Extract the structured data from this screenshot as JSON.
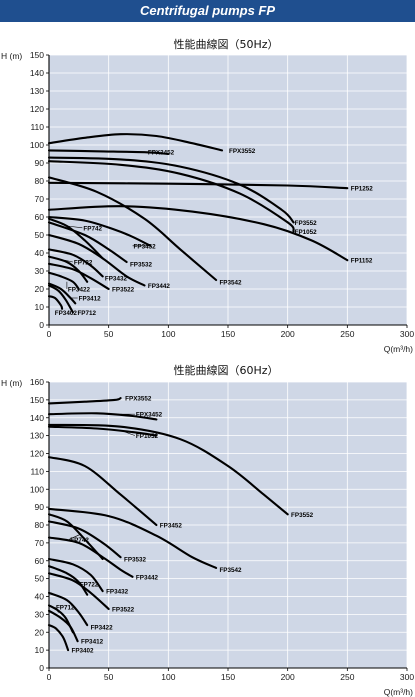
{
  "header": {
    "title": "Centrifugal pumps FP",
    "background": "#1f4f8f",
    "text_color": "#ffffff"
  },
  "colors": {
    "plot_background": "#cfd7e6",
    "grid": "#ffffff",
    "curve": "#000000",
    "axis": "#000000"
  },
  "chart_data": [
    {
      "type": "line",
      "title": "性能曲線図（50Hz）",
      "ylabel": "H (m)",
      "xlabel": "Q(m³/h)",
      "xlim": [
        0,
        300
      ],
      "ylim": [
        0,
        150
      ],
      "xticks": [
        0,
        50,
        100,
        150,
        200,
        250,
        300
      ],
      "yticks": [
        0,
        10,
        20,
        30,
        40,
        50,
        60,
        70,
        80,
        90,
        100,
        110,
        120,
        130,
        140,
        150
      ],
      "grid": true,
      "series": [
        {
          "name": "FPX3552",
          "points": [
            [
              0,
              101
            ],
            [
              30,
              104
            ],
            [
              60,
              106
            ],
            [
              90,
              105
            ],
            [
              120,
              101
            ],
            [
              145,
              97
            ]
          ],
          "label_at": [
            150,
            97
          ]
        },
        {
          "name": "FPX3452",
          "points": [
            [
              0,
              97
            ],
            [
              40,
              96.5
            ],
            [
              80,
              96
            ],
            [
              100,
              95
            ]
          ],
          "label_at": [
            82,
            96
          ],
          "leader": [
            100,
            95
          ]
        },
        {
          "name": "FP1252",
          "points": [
            [
              0,
              79
            ],
            [
              100,
              78.5
            ],
            [
              200,
              77.5
            ],
            [
              250,
              76
            ]
          ],
          "label_at": [
            252,
            76
          ]
        },
        {
          "name": "FP3552",
          "points": [
            [
              0,
              93
            ],
            [
              60,
              92
            ],
            [
              110,
              88
            ],
            [
              160,
              78
            ],
            [
              195,
              64
            ],
            [
              205,
              57
            ]
          ],
          "label_at": [
            205,
            57
          ]
        },
        {
          "name": "FP1052",
          "points": [
            [
              0,
              91
            ],
            [
              60,
              89
            ],
            [
              110,
              84
            ],
            [
              160,
              73
            ],
            [
              200,
              57
            ],
            [
              205,
              52
            ]
          ],
          "label_at": [
            205,
            52
          ]
        },
        {
          "name": "FP1152",
          "points": [
            [
              0,
              64
            ],
            [
              60,
              66
            ],
            [
              120,
              63
            ],
            [
              180,
              56
            ],
            [
              220,
              47
            ],
            [
              250,
              36
            ]
          ],
          "label_at": [
            252,
            36
          ]
        },
        {
          "name": "FP3542",
          "points": [
            [
              0,
              82
            ],
            [
              40,
              74
            ],
            [
              80,
              59
            ],
            [
              110,
              42
            ],
            [
              140,
              25
            ]
          ],
          "label_at": [
            142,
            24
          ]
        },
        {
          "name": "FP3452",
          "points": [
            [
              0,
              60
            ],
            [
              30,
              58
            ],
            [
              55,
              53
            ],
            [
              70,
              49
            ],
            [
              85,
              44
            ]
          ],
          "label_at": [
            70,
            44
          ],
          "leader": [
            85,
            44
          ]
        },
        {
          "name": "FP3532",
          "points": [
            [
              0,
              57
            ],
            [
              30,
              50
            ],
            [
              50,
              42
            ],
            [
              65,
              35
            ]
          ],
          "label_at": [
            67,
            34
          ]
        },
        {
          "name": "FP3442",
          "points": [
            [
              0,
              50
            ],
            [
              25,
              45
            ],
            [
              45,
              37
            ],
            [
              65,
              27
            ],
            [
              80,
              22
            ]
          ],
          "label_at": [
            82,
            22
          ]
        },
        {
          "name": "FP3432",
          "points": [
            [
              0,
              42
            ],
            [
              20,
              39
            ],
            [
              35,
              33
            ],
            [
              45,
              27
            ]
          ],
          "label_at": [
            46,
            26
          ]
        },
        {
          "name": "FP3522",
          "points": [
            [
              0,
              34
            ],
            [
              20,
              31
            ],
            [
              35,
              26
            ],
            [
              50,
              20
            ]
          ],
          "label_at": [
            52,
            20
          ]
        },
        {
          "name": "FP742",
          "points": [
            [
              0,
              59
            ],
            [
              15,
              55
            ],
            [
              30,
              47
            ],
            [
              45,
              37
            ]
          ],
          "label_at": [
            28,
            54
          ],
          "leader": [
            15,
            55
          ]
        },
        {
          "name": "FP722",
          "points": [
            [
              0,
              38
            ],
            [
              15,
              35
            ],
            [
              25,
              30
            ],
            [
              32,
              24
            ]
          ],
          "label_at": [
            20,
            35
          ],
          "leader": [
            13,
            36
          ]
        },
        {
          "name": "FP3422",
          "points": [
            [
              0,
              29
            ],
            [
              10,
              27
            ],
            [
              20,
              24
            ],
            [
              25,
              20
            ]
          ],
          "label_at": [
            15,
            20
          ],
          "leader": [
            15,
            24
          ]
        },
        {
          "name": "FP3412",
          "points": [
            [
              0,
              23
            ],
            [
              10,
              20
            ],
            [
              18,
              15
            ],
            [
              22,
              12
            ]
          ],
          "label_at": [
            24,
            15
          ],
          "leader": [
            18,
            15
          ]
        },
        {
          "name": "FP3402",
          "points": [
            [
              0,
              16
            ],
            [
              5,
              15
            ],
            [
              10,
              11
            ],
            [
              11,
              9
            ]
          ],
          "label_at": [
            4,
            7
          ]
        },
        {
          "name": "FP712",
          "points": [
            [
              0,
              22
            ],
            [
              8,
              19
            ],
            [
              14,
              14
            ],
            [
              20,
              7
            ]
          ],
          "label_at": [
            23,
            7
          ]
        }
      ]
    },
    {
      "type": "line",
      "title": "性能曲線図（60Hz）",
      "ylabel": "H (m)",
      "xlabel": "Q(m³/h)",
      "xlim": [
        0,
        300
      ],
      "ylim": [
        0,
        160
      ],
      "xticks": [
        0,
        50,
        100,
        150,
        200,
        250,
        300
      ],
      "yticks": [
        0,
        10,
        20,
        30,
        40,
        50,
        60,
        70,
        80,
        90,
        100,
        110,
        120,
        130,
        140,
        150,
        160
      ],
      "grid": true,
      "series": [
        {
          "name": "FPX3552",
          "points": [
            [
              0,
              148
            ],
            [
              30,
              149
            ],
            [
              55,
              150
            ],
            [
              60,
              151
            ]
          ],
          "label_at": [
            63,
            151
          ]
        },
        {
          "name": "FPX3452",
          "points": [
            [
              0,
              142
            ],
            [
              40,
              142.5
            ],
            [
              70,
              141
            ],
            [
              90,
              139
            ]
          ],
          "label_at": [
            72,
            142
          ],
          "leader": [
            60,
            142
          ]
        },
        {
          "name": "FP1052",
          "points": [
            [
              0,
              135
            ],
            [
              40,
              134
            ],
            [
              70,
              132
            ],
            [
              90,
              130
            ]
          ],
          "label_at": [
            72,
            130
          ],
          "leader": [
            60,
            133
          ]
        },
        {
          "name": "FP3552",
          "points": [
            [
              0,
              136
            ],
            [
              60,
              135
            ],
            [
              110,
              128
            ],
            [
              150,
              113
            ],
            [
              180,
              97
            ],
            [
              200,
              86
            ]
          ],
          "label_at": [
            202,
            86
          ]
        },
        {
          "name": "FP3452",
          "points": [
            [
              0,
              118
            ],
            [
              30,
              113
            ],
            [
              60,
              97
            ],
            [
              90,
              80
            ]
          ],
          "label_at": [
            92,
            80
          ]
        },
        {
          "name": "FP3542",
          "points": [
            [
              0,
              89
            ],
            [
              50,
              85
            ],
            [
              90,
              74
            ],
            [
              120,
              62
            ],
            [
              140,
              56
            ]
          ],
          "label_at": [
            142,
            55
          ]
        },
        {
          "name": "FP3532",
          "points": [
            [
              0,
              82
            ],
            [
              25,
              78
            ],
            [
              45,
              70
            ],
            [
              60,
              62
            ]
          ],
          "label_at": [
            62,
            61
          ]
        },
        {
          "name": "FP3442",
          "points": [
            [
              0,
              73
            ],
            [
              25,
              70
            ],
            [
              45,
              62
            ],
            [
              60,
              55
            ],
            [
              70,
              51
            ]
          ],
          "label_at": [
            72,
            51
          ]
        },
        {
          "name": "FP3432",
          "points": [
            [
              0,
              61
            ],
            [
              20,
              58
            ],
            [
              35,
              52
            ],
            [
              45,
              43
            ]
          ],
          "label_at": [
            47,
            43
          ]
        },
        {
          "name": "FP3522",
          "points": [
            [
              0,
              53
            ],
            [
              20,
              49
            ],
            [
              35,
              42
            ],
            [
              50,
              33
            ]
          ],
          "label_at": [
            52,
            33
          ]
        },
        {
          "name": "FP742",
          "points": [
            [
              0,
              86
            ],
            [
              15,
              82
            ],
            [
              30,
              72
            ],
            [
              45,
              61
            ]
          ],
          "label_at": [
            17,
            72
          ],
          "leader": [
            27,
            75
          ]
        },
        {
          "name": "FP722",
          "points": [
            [
              0,
              57
            ],
            [
              15,
              53
            ],
            [
              25,
              48
            ],
            [
              32,
              41
            ]
          ],
          "label_at": [
            25,
            47
          ]
        },
        {
          "name": "FP712",
          "points": [
            [
              0,
              35
            ],
            [
              8,
              32
            ],
            [
              14,
              28
            ],
            [
              20,
              20
            ]
          ],
          "label_at": [
            5,
            34
          ],
          "leader": [
            8,
            31
          ]
        },
        {
          "name": "FP3422",
          "points": [
            [
              0,
              42
            ],
            [
              15,
              38
            ],
            [
              25,
              31
            ],
            [
              32,
              24
            ]
          ],
          "label_at": [
            34,
            23
          ]
        },
        {
          "name": "FP3412",
          "points": [
            [
              0,
              32
            ],
            [
              10,
              28
            ],
            [
              18,
              23
            ],
            [
              24,
              15
            ]
          ],
          "label_at": [
            26,
            15
          ]
        },
        {
          "name": "FP3402",
          "points": [
            [
              0,
              24
            ],
            [
              6,
              22
            ],
            [
              12,
              17
            ],
            [
              16,
              10
            ]
          ],
          "label_at": [
            18,
            10
          ]
        }
      ]
    }
  ]
}
